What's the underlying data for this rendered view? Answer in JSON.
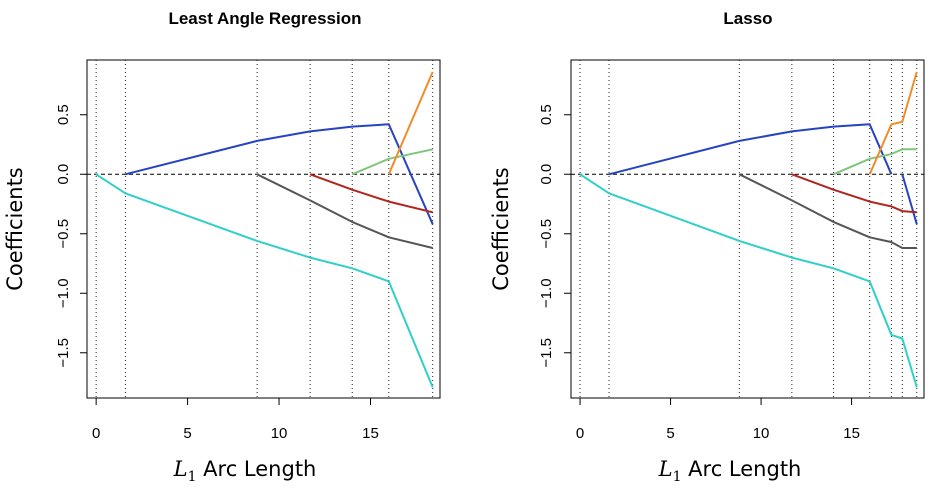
{
  "chart_data": [
    {
      "type": "line",
      "title": "Least Angle Regression",
      "xlabel_main": "L",
      "xlabel_sub": "1",
      "xlabel_rest": " Arc Length",
      "ylabel": "Coefficients",
      "xlim": [
        -0.5,
        18.8
      ],
      "ylim": [
        -1.88,
        0.96
      ],
      "xticks": [
        0,
        5,
        10,
        15
      ],
      "yticks": [
        0.5,
        0.0,
        -0.5,
        -1.0,
        -1.5
      ],
      "ytick_labels": [
        "0.5",
        "0.0",
        "−0.5",
        "−1.0",
        "−1.5"
      ],
      "vlines": [
        0,
        1.6,
        8.8,
        11.7,
        14.0,
        16.0,
        18.4
      ],
      "zero_line": 0,
      "series": [
        {
          "name": "cyan",
          "color": "#2ed0c8",
          "x": [
            0,
            1.6,
            8.8,
            11.7,
            14.0,
            16.0,
            18.4
          ],
          "y": [
            0,
            -0.16,
            -0.56,
            -0.7,
            -0.79,
            -0.9,
            -1.79
          ]
        },
        {
          "name": "blue",
          "color": "#2744c0",
          "x": [
            1.6,
            8.8,
            11.7,
            14.0,
            16.0,
            18.4
          ],
          "y": [
            0,
            0.28,
            0.36,
            0.4,
            0.42,
            -0.42
          ]
        },
        {
          "name": "gray",
          "color": "#555555",
          "x": [
            8.8,
            11.7,
            14.0,
            16.0,
            18.4
          ],
          "y": [
            0,
            -0.22,
            -0.4,
            -0.53,
            -0.62
          ]
        },
        {
          "name": "red",
          "color": "#b0261f",
          "x": [
            11.7,
            14.0,
            16.0,
            18.4
          ],
          "y": [
            0,
            -0.13,
            -0.23,
            -0.32
          ]
        },
        {
          "name": "green",
          "color": "#7fc57a",
          "x": [
            14.0,
            16.0,
            18.4
          ],
          "y": [
            0,
            0.13,
            0.21
          ]
        },
        {
          "name": "orange",
          "color": "#f08c2a",
          "x": [
            16.0,
            18.4
          ],
          "y": [
            0,
            0.86
          ]
        }
      ]
    },
    {
      "type": "line",
      "title": "Lasso",
      "xlabel_main": "L",
      "xlabel_sub": "1",
      "xlabel_rest": " Arc Length",
      "ylabel": "Coefficients",
      "xlim": [
        -0.5,
        19.0
      ],
      "ylim": [
        -1.88,
        0.96
      ],
      "xticks": [
        0,
        5,
        10,
        15
      ],
      "yticks": [
        0.5,
        0.0,
        -0.5,
        -1.0,
        -1.5
      ],
      "ytick_labels": [
        "0.5",
        "0.0",
        "−0.5",
        "−1.0",
        "−1.5"
      ],
      "vlines": [
        0,
        1.6,
        8.8,
        11.7,
        14.0,
        16.0,
        17.2,
        17.8,
        18.6
      ],
      "zero_line": 0,
      "series": [
        {
          "name": "cyan",
          "color": "#2ed0c8",
          "x": [
            0,
            1.6,
            8.8,
            11.7,
            14.0,
            16.0,
            17.2,
            17.8,
            18.6
          ],
          "y": [
            0,
            -0.16,
            -0.56,
            -0.7,
            -0.79,
            -0.9,
            -1.35,
            -1.38,
            -1.79
          ]
        },
        {
          "name": "blue",
          "color": "#2744c0",
          "x": [
            1.6,
            8.8,
            11.7,
            14.0,
            16.0,
            17.2
          ],
          "y": [
            0,
            0.28,
            0.36,
            0.4,
            0.42,
            0.0
          ]
        },
        {
          "name": "blue-reentry",
          "color": "#2744c0",
          "x": [
            17.8,
            18.6
          ],
          "y": [
            0,
            -0.42
          ]
        },
        {
          "name": "gray",
          "color": "#555555",
          "x": [
            8.8,
            11.7,
            14.0,
            16.0,
            17.2,
            17.8,
            18.6
          ],
          "y": [
            0,
            -0.22,
            -0.4,
            -0.53,
            -0.57,
            -0.62,
            -0.62
          ]
        },
        {
          "name": "red",
          "color": "#b0261f",
          "x": [
            11.7,
            14.0,
            16.0,
            17.2,
            17.8,
            18.6
          ],
          "y": [
            0,
            -0.13,
            -0.23,
            -0.27,
            -0.31,
            -0.32
          ]
        },
        {
          "name": "green",
          "color": "#7fc57a",
          "x": [
            14.0,
            16.0,
            17.2,
            17.8,
            18.6
          ],
          "y": [
            0,
            0.13,
            0.17,
            0.21,
            0.21
          ]
        },
        {
          "name": "orange",
          "color": "#f08c2a",
          "x": [
            16.0,
            17.2,
            17.8,
            18.6
          ],
          "y": [
            0,
            0.42,
            0.44,
            0.86
          ]
        }
      ]
    }
  ]
}
